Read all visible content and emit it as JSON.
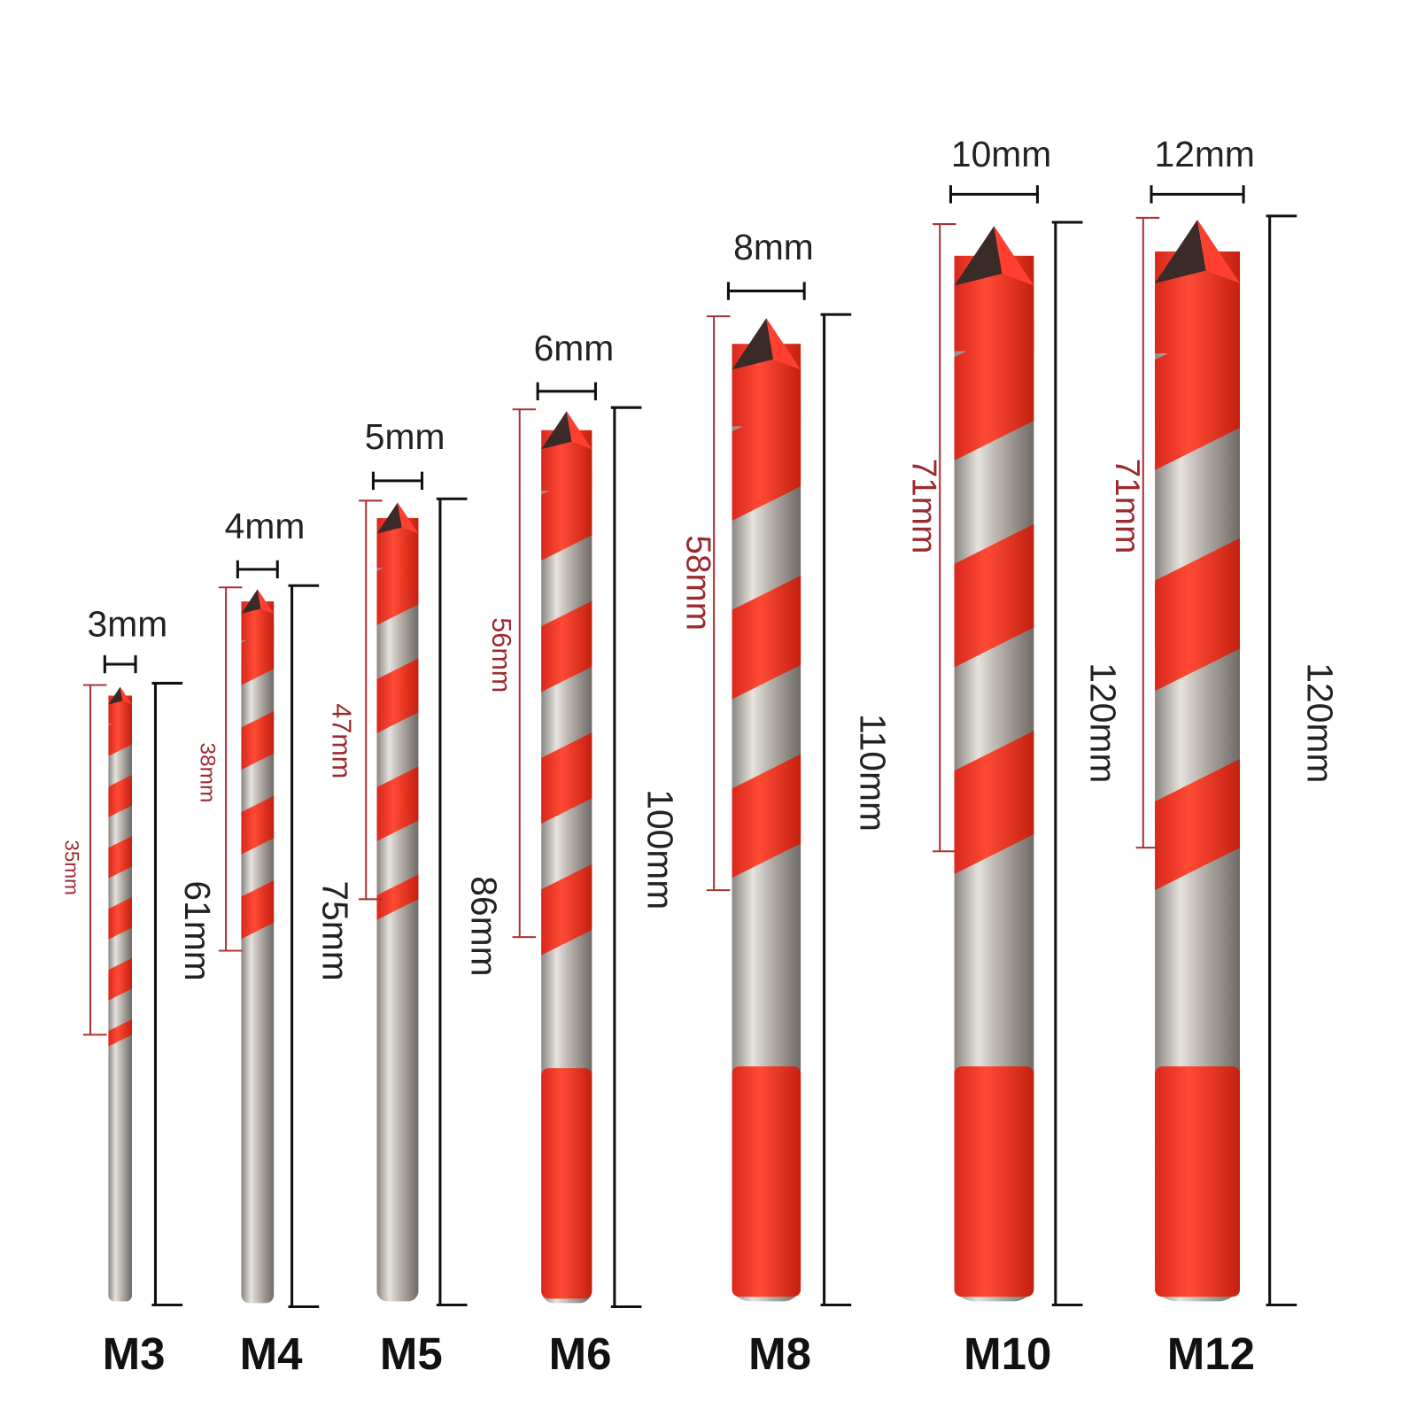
{
  "bits": [
    {
      "name": "M3",
      "diameter": "3mm",
      "flute_length": "35mm",
      "total_length": "61mm"
    },
    {
      "name": "M4",
      "diameter": "4mm",
      "flute_length": "38mm",
      "total_length": "75mm"
    },
    {
      "name": "M5",
      "diameter": "5mm",
      "flute_length": "47mm",
      "total_length": "86mm"
    },
    {
      "name": "M6",
      "diameter": "6mm",
      "flute_length": "56mm",
      "total_length": "100mm"
    },
    {
      "name": "M8",
      "diameter": "8mm",
      "flute_length": "58mm",
      "total_length": "110mm"
    },
    {
      "name": "M10",
      "diameter": "10mm",
      "flute_length": "71mm",
      "total_length": "120mm"
    },
    {
      "name": "M12",
      "diameter": "12mm",
      "flute_length": "71mm",
      "total_length": "120mm"
    }
  ]
}
